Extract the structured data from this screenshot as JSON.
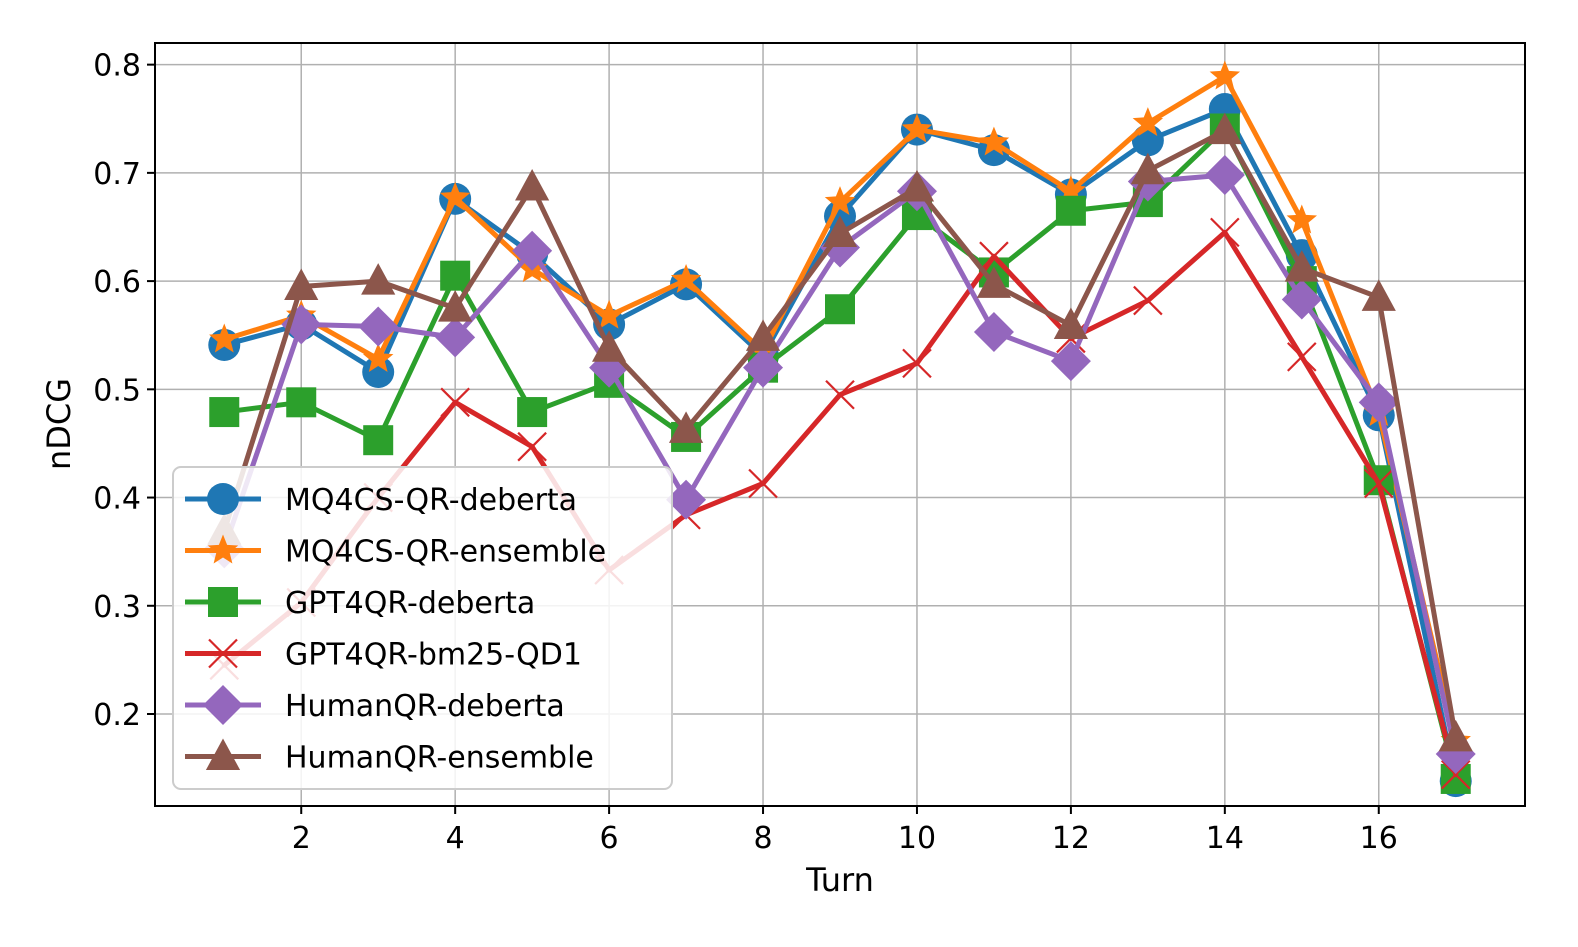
{
  "chart_data": {
    "type": "line",
    "title": "",
    "xlabel": "Turn",
    "ylabel": "nDCG",
    "xlim": [
      0.1,
      17.9
    ],
    "ylim": [
      0.115,
      0.82
    ],
    "xticks": [
      2,
      4,
      6,
      8,
      10,
      12,
      14,
      16
    ],
    "yticks": [
      0.2,
      0.3,
      0.4,
      0.5,
      0.6,
      0.7,
      0.8
    ],
    "xtick_labels": [
      "2",
      "4",
      "6",
      "8",
      "10",
      "12",
      "14",
      "16"
    ],
    "ytick_labels": [
      "0.2",
      "0.3",
      "0.4",
      "0.5",
      "0.6",
      "0.7",
      "0.8"
    ],
    "grid": true,
    "legend_position": "lower-left",
    "x": [
      1,
      2,
      3,
      4,
      5,
      6,
      7,
      8,
      9,
      10,
      11,
      12,
      13,
      14,
      15,
      16,
      17
    ],
    "series": [
      {
        "name": "MQ4CS-QR-deberta",
        "color": "#1f77b4",
        "marker": "circle",
        "values": [
          0.541,
          0.56,
          0.516,
          0.676,
          0.625,
          0.56,
          0.597,
          0.531,
          0.66,
          0.74,
          0.721,
          0.68,
          0.73,
          0.759,
          0.624,
          0.476,
          0.138
        ]
      },
      {
        "name": "MQ4CS-QR-ensemble",
        "color": "#ff7f0e",
        "marker": "star",
        "values": [
          0.546,
          0.568,
          0.528,
          0.677,
          0.611,
          0.568,
          0.601,
          0.535,
          0.673,
          0.74,
          0.728,
          0.683,
          0.746,
          0.789,
          0.656,
          0.478,
          0.175
        ]
      },
      {
        "name": "GPT4QR-deberta",
        "color": "#2ca02c",
        "marker": "square",
        "values": [
          0.479,
          0.488,
          0.453,
          0.605,
          0.479,
          0.506,
          0.456,
          0.52,
          0.574,
          0.661,
          0.608,
          0.665,
          0.673,
          0.741,
          0.6,
          0.416,
          0.14
        ]
      },
      {
        "name": "GPT4QR-bm25-QD1",
        "color": "#d62728",
        "marker": "x",
        "values": [
          0.245,
          0.303,
          0.4,
          0.488,
          0.447,
          0.333,
          0.384,
          0.413,
          0.495,
          0.524,
          0.623,
          0.547,
          0.582,
          0.645,
          0.53,
          0.413,
          0.144
        ]
      },
      {
        "name": "HumanQR-deberta",
        "color": "#9467bd",
        "marker": "diamond",
        "values": [
          0.353,
          0.56,
          0.558,
          0.548,
          0.628,
          0.52,
          0.398,
          0.52,
          0.631,
          0.683,
          0.553,
          0.526,
          0.692,
          0.698,
          0.583,
          0.488,
          0.163
        ]
      },
      {
        "name": "HumanQR-ensemble",
        "color": "#8c564b",
        "marker": "triangle",
        "values": [
          0.369,
          0.595,
          0.6,
          0.575,
          0.687,
          0.538,
          0.463,
          0.548,
          0.644,
          0.686,
          0.597,
          0.559,
          0.702,
          0.739,
          0.612,
          0.585,
          0.178
        ]
      }
    ]
  }
}
